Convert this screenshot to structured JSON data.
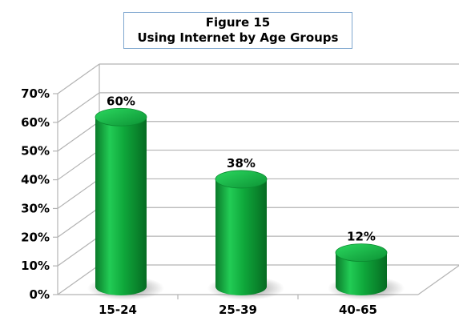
{
  "chart_data": {
    "type": "bar",
    "title": "Figure 15",
    "subtitle": "Using Internet by Age Groups",
    "categories": [
      "15-24",
      "25-39",
      "40-65"
    ],
    "values": [
      60,
      38,
      12
    ],
    "data_labels": [
      "60%",
      "38%",
      "12%"
    ],
    "y_ticks": [
      "0%",
      "10%",
      "20%",
      "30%",
      "40%",
      "50%",
      "60%",
      "70%"
    ],
    "ylim": [
      0,
      70
    ],
    "xlabel": "",
    "ylabel": "",
    "grid": true,
    "style": "3d-cylinder",
    "bar_color": "#0fa83b"
  }
}
